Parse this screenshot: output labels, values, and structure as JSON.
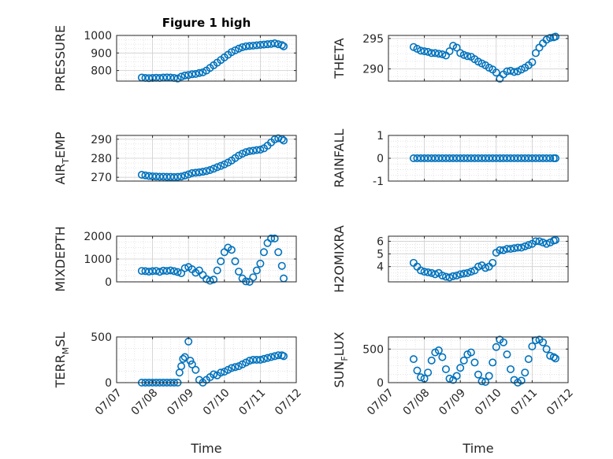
{
  "figure": {
    "title": "Figure 1 high",
    "xlabel": "Time",
    "marker_color": "#0072BD",
    "grid_color": "#d9d9d9"
  },
  "chart_data": [
    {
      "id": "pressure",
      "type": "scatter",
      "title": "Figure 1 high",
      "ylabel": "PRESSURE",
      "ylim": [
        740,
        1000
      ],
      "yticks": [
        800,
        900,
        1000
      ],
      "xlim": [
        0,
        5
      ],
      "xticks": [
        0,
        1,
        2,
        3,
        4,
        5
      ],
      "xticklabels": [
        "07/07",
        "07/08",
        "07/09",
        "07/10",
        "07/11",
        "07/12"
      ],
      "grid": true,
      "show_xticklabels": false,
      "x": [
        0.7,
        0.8,
        0.9,
        1.0,
        1.1,
        1.2,
        1.3,
        1.4,
        1.5,
        1.6,
        1.7,
        1.8,
        1.9,
        2.0,
        2.1,
        2.2,
        2.3,
        2.4,
        2.5,
        2.6,
        2.7,
        2.8,
        2.9,
        3.0,
        3.1,
        3.2,
        3.3,
        3.4,
        3.5,
        3.6,
        3.7,
        3.8,
        3.9,
        4.0,
        4.1,
        4.2,
        4.3,
        4.4,
        4.5,
        4.6,
        4.65
      ],
      "y": [
        760,
        758,
        757,
        758,
        759,
        758,
        760,
        761,
        760,
        758,
        755,
        765,
        772,
        775,
        779,
        781,
        786,
        790,
        800,
        815,
        830,
        845,
        860,
        875,
        890,
        905,
        915,
        925,
        933,
        938,
        940,
        942,
        944,
        946,
        948,
        950,
        952,
        955,
        950,
        945,
        938
      ]
    },
    {
      "id": "theta",
      "type": "scatter",
      "ylabel": "THETA",
      "ylim": [
        288,
        295.5
      ],
      "yticks": [
        290,
        295
      ],
      "xlim": [
        0,
        5
      ],
      "xticks": [
        0,
        1,
        2,
        3,
        4,
        5
      ],
      "xticklabels": [
        "07/07",
        "07/08",
        "07/09",
        "07/10",
        "07/11",
        "07/12"
      ],
      "grid": true,
      "show_xticklabels": false,
      "x": [
        0.7,
        0.8,
        0.9,
        1.0,
        1.1,
        1.2,
        1.3,
        1.4,
        1.5,
        1.6,
        1.7,
        1.8,
        1.9,
        2.0,
        2.1,
        2.2,
        2.3,
        2.4,
        2.5,
        2.6,
        2.7,
        2.8,
        2.9,
        3.0,
        3.1,
        3.2,
        3.3,
        3.4,
        3.5,
        3.6,
        3.7,
        3.8,
        3.9,
        4.0,
        4.1,
        4.2,
        4.3,
        4.4,
        4.5,
        4.6,
        4.65
      ],
      "y": [
        293.6,
        293.3,
        293.0,
        292.9,
        292.8,
        292.6,
        292.6,
        292.5,
        292.4,
        292.2,
        292.9,
        293.8,
        293.5,
        292.6,
        292.3,
        292.1,
        292.0,
        291.6,
        291.2,
        290.9,
        290.6,
        290.2,
        289.9,
        289.4,
        288.4,
        289.1,
        289.6,
        289.7,
        289.5,
        289.6,
        289.9,
        290.2,
        290.6,
        291.1,
        292.6,
        293.5,
        294.2,
        294.8,
        295.1,
        295.2,
        295.3
      ]
    },
    {
      "id": "air-temp",
      "type": "scatter",
      "ylabel": "AIR_TEMP",
      "ylim": [
        268,
        292
      ],
      "yticks": [
        270,
        280,
        290
      ],
      "xlim": [
        0,
        5
      ],
      "xticks": [
        0,
        1,
        2,
        3,
        4,
        5
      ],
      "xticklabels": [
        "07/07",
        "07/08",
        "07/09",
        "07/10",
        "07/11",
        "07/12"
      ],
      "grid": true,
      "show_xticklabels": false,
      "x": [
        0.7,
        0.8,
        0.9,
        1.0,
        1.1,
        1.2,
        1.3,
        1.4,
        1.5,
        1.6,
        1.7,
        1.8,
        1.9,
        2.0,
        2.1,
        2.2,
        2.3,
        2.4,
        2.5,
        2.6,
        2.7,
        2.8,
        2.9,
        3.0,
        3.1,
        3.2,
        3.3,
        3.4,
        3.5,
        3.6,
        3.7,
        3.8,
        3.9,
        4.0,
        4.1,
        4.2,
        4.3,
        4.4,
        4.5,
        4.6,
        4.65
      ],
      "y": [
        271.3,
        271.0,
        270.7,
        270.5,
        270.4,
        270.3,
        270.3,
        270.2,
        270.2,
        270.1,
        270.2,
        270.4,
        270.9,
        271.5,
        272.2,
        272.4,
        272.6,
        272.9,
        273.3,
        273.8,
        274.5,
        275.3,
        276.0,
        276.8,
        277.7,
        278.8,
        280.1,
        281.4,
        282.4,
        283.2,
        283.7,
        284.0,
        284.3,
        284.5,
        285.2,
        286.6,
        288.3,
        289.9,
        290.5,
        290.1,
        289.3
      ]
    },
    {
      "id": "rainfall",
      "type": "scatter",
      "ylabel": "RAINFALL",
      "ylim": [
        -1,
        1
      ],
      "yticks": [
        -1,
        0,
        1
      ],
      "xlim": [
        0,
        5
      ],
      "xticks": [
        0,
        1,
        2,
        3,
        4,
        5
      ],
      "xticklabels": [
        "07/07",
        "07/08",
        "07/09",
        "07/10",
        "07/11",
        "07/12"
      ],
      "grid": true,
      "show_xticklabels": false,
      "x": [
        0.7,
        0.8,
        0.9,
        1.0,
        1.1,
        1.2,
        1.3,
        1.4,
        1.5,
        1.6,
        1.7,
        1.8,
        1.9,
        2.0,
        2.1,
        2.2,
        2.3,
        2.4,
        2.5,
        2.6,
        2.7,
        2.8,
        2.9,
        3.0,
        3.1,
        3.2,
        3.3,
        3.4,
        3.5,
        3.6,
        3.7,
        3.8,
        3.9,
        4.0,
        4.1,
        4.2,
        4.3,
        4.4,
        4.5,
        4.6,
        4.65
      ],
      "y": [
        0,
        0,
        0,
        0,
        0,
        0,
        0,
        0,
        0,
        0,
        0,
        0,
        0,
        0,
        0,
        0,
        0,
        0,
        0,
        0,
        0,
        0,
        0,
        0,
        0,
        0,
        0,
        0,
        0,
        0,
        0,
        0,
        0,
        0,
        0,
        0,
        0,
        0,
        0,
        0,
        0
      ]
    },
    {
      "id": "mixdepth",
      "type": "scatter",
      "ylabel": "MIXDEPTH",
      "ylim": [
        0,
        2000
      ],
      "yticks": [
        0,
        1000,
        2000
      ],
      "xlim": [
        0,
        5
      ],
      "xticks": [
        0,
        1,
        2,
        3,
        4,
        5
      ],
      "xticklabels": [
        "07/07",
        "07/08",
        "07/09",
        "07/10",
        "07/11",
        "07/12"
      ],
      "grid": true,
      "show_xticklabels": false,
      "x": [
        0.7,
        0.8,
        0.9,
        1.0,
        1.1,
        1.2,
        1.3,
        1.4,
        1.5,
        1.6,
        1.7,
        1.8,
        1.9,
        2.0,
        2.1,
        2.2,
        2.3,
        2.4,
        2.5,
        2.6,
        2.7,
        2.8,
        2.9,
        3.0,
        3.1,
        3.2,
        3.3,
        3.4,
        3.5,
        3.6,
        3.7,
        3.8,
        3.9,
        4.0,
        4.1,
        4.2,
        4.3,
        4.4,
        4.5,
        4.6,
        4.65
      ],
      "y": [
        480,
        470,
        450,
        470,
        480,
        440,
        490,
        480,
        500,
        470,
        430,
        380,
        600,
        650,
        550,
        400,
        500,
        300,
        120,
        50,
        100,
        500,
        900,
        1300,
        1500,
        1400,
        900,
        450,
        150,
        20,
        0,
        200,
        500,
        800,
        1300,
        1700,
        1900,
        1900,
        1300,
        700,
        150
      ]
    },
    {
      "id": "h2omixra",
      "type": "scatter",
      "ylabel": "H2OMIXRA",
      "ylim": [
        2.8,
        6.4
      ],
      "yticks": [
        4,
        5,
        6
      ],
      "xlim": [
        0,
        5
      ],
      "xticks": [
        0,
        1,
        2,
        3,
        4,
        5
      ],
      "xticklabels": [
        "07/07",
        "07/08",
        "07/09",
        "07/10",
        "07/11",
        "07/12"
      ],
      "grid": true,
      "show_xticklabels": false,
      "x": [
        0.7,
        0.8,
        0.9,
        1.0,
        1.1,
        1.2,
        1.3,
        1.4,
        1.5,
        1.6,
        1.7,
        1.8,
        1.9,
        2.0,
        2.1,
        2.2,
        2.3,
        2.4,
        2.5,
        2.6,
        2.7,
        2.8,
        2.9,
        3.0,
        3.1,
        3.2,
        3.3,
        3.4,
        3.5,
        3.6,
        3.7,
        3.8,
        3.9,
        4.0,
        4.1,
        4.2,
        4.3,
        4.4,
        4.5,
        4.6,
        4.65
      ],
      "y": [
        4.3,
        4.0,
        3.7,
        3.6,
        3.55,
        3.5,
        3.4,
        3.5,
        3.3,
        3.2,
        3.15,
        3.25,
        3.3,
        3.4,
        3.45,
        3.5,
        3.6,
        3.7,
        4.0,
        4.1,
        3.9,
        4.0,
        4.3,
        5.1,
        5.3,
        5.3,
        5.4,
        5.4,
        5.45,
        5.5,
        5.5,
        5.6,
        5.7,
        5.8,
        6.0,
        6.0,
        5.9,
        5.8,
        5.9,
        6.05,
        6.1
      ]
    },
    {
      "id": "terr-msl",
      "type": "scatter",
      "ylabel": "TERR_MSL",
      "ylim": [
        0,
        500
      ],
      "yticks": [
        0,
        500
      ],
      "xlim": [
        0,
        5
      ],
      "xticks": [
        0,
        1,
        2,
        3,
        4,
        5
      ],
      "xticklabels": [
        "07/07",
        "07/08",
        "07/09",
        "07/10",
        "07/11",
        "07/12"
      ],
      "grid": true,
      "show_xticklabels": true,
      "x": [
        0.7,
        0.8,
        0.9,
        1.0,
        1.1,
        1.2,
        1.3,
        1.4,
        1.5,
        1.6,
        1.7,
        1.75,
        1.8,
        1.85,
        1.9,
        2.0,
        2.05,
        2.1,
        2.2,
        2.3,
        2.4,
        2.5,
        2.6,
        2.7,
        2.8,
        2.9,
        3.0,
        3.1,
        3.2,
        3.3,
        3.4,
        3.5,
        3.6,
        3.7,
        3.8,
        3.9,
        4.0,
        4.1,
        4.2,
        4.3,
        4.4,
        4.5,
        4.6,
        4.65
      ],
      "y": [
        0,
        0,
        0,
        0,
        0,
        0,
        0,
        0,
        0,
        0,
        0,
        110,
        180,
        260,
        280,
        450,
        240,
        200,
        140,
        30,
        0,
        30,
        60,
        90,
        80,
        110,
        120,
        140,
        160,
        170,
        180,
        200,
        220,
        240,
        250,
        250,
        250,
        260,
        270,
        280,
        290,
        300,
        300,
        290
      ]
    },
    {
      "id": "sun-flux",
      "type": "scatter",
      "ylabel": "SUN_FLUX",
      "ylim": [
        0,
        680
      ],
      "yticks": [
        0,
        500
      ],
      "xlim": [
        0,
        5
      ],
      "xticks": [
        0,
        1,
        2,
        3,
        4,
        5
      ],
      "xticklabels": [
        "07/07",
        "07/08",
        "07/09",
        "07/10",
        "07/11",
        "07/12"
      ],
      "grid": true,
      "show_xticklabels": true,
      "x": [
        0.7,
        0.8,
        0.9,
        1.0,
        1.1,
        1.2,
        1.3,
        1.4,
        1.5,
        1.6,
        1.7,
        1.8,
        1.9,
        2.0,
        2.1,
        2.2,
        2.3,
        2.4,
        2.5,
        2.6,
        2.7,
        2.8,
        2.9,
        3.0,
        3.1,
        3.2,
        3.3,
        3.4,
        3.5,
        3.6,
        3.7,
        3.8,
        3.9,
        4.0,
        4.1,
        4.2,
        4.3,
        4.4,
        4.5,
        4.6,
        4.65
      ],
      "y": [
        350,
        180,
        80,
        60,
        150,
        330,
        450,
        480,
        380,
        200,
        60,
        40,
        100,
        220,
        330,
        420,
        450,
        300,
        120,
        20,
        10,
        100,
        300,
        530,
        640,
        600,
        420,
        200,
        40,
        0,
        30,
        150,
        350,
        540,
        630,
        640,
        600,
        500,
        400,
        380,
        360
      ]
    }
  ]
}
